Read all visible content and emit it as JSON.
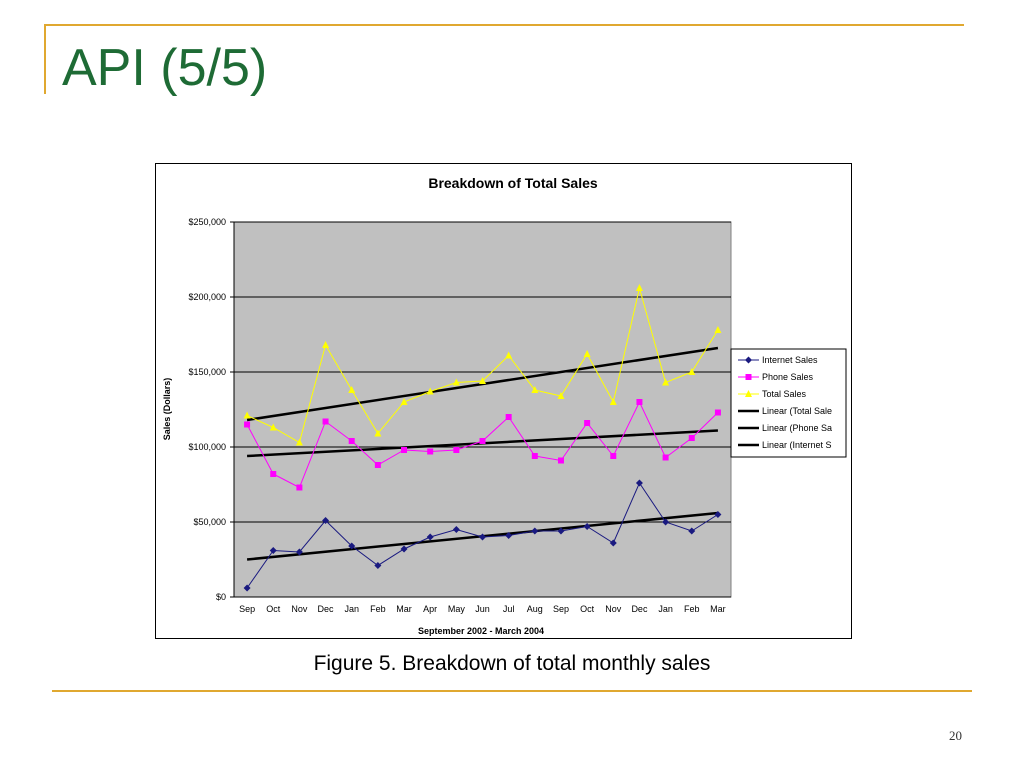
{
  "slide": {
    "title": "API (5/5)",
    "caption": "Figure 5. Breakdown of total monthly sales",
    "page_number": "20",
    "title_color": "#1e6b35",
    "accent_color": "#e0a830"
  },
  "chart_data": {
    "type": "line",
    "title": "Breakdown of Total Sales",
    "xlabel": "September 2002 - March 2004",
    "ylabel": "Sales (Dollars)",
    "ylim": [
      0,
      250000
    ],
    "yticks": [
      0,
      50000,
      100000,
      150000,
      200000,
      250000
    ],
    "ytick_labels": [
      "$0",
      "$50,000",
      "$100,000",
      "$150,000",
      "$200,000",
      "$250,000"
    ],
    "grid": true,
    "legend_position": "right",
    "plot_background": "#c0c0c0",
    "categories": [
      "Sep",
      "Oct",
      "Nov",
      "Dec",
      "Jan",
      "Feb",
      "Mar",
      "Apr",
      "May",
      "Jun",
      "Jul",
      "Aug",
      "Sep",
      "Oct",
      "Nov",
      "Dec",
      "Jan",
      "Feb",
      "Mar"
    ],
    "series": [
      {
        "name": "Internet Sales",
        "color": "#1a1a80",
        "marker": "diamond",
        "values": [
          6000,
          31000,
          30000,
          51000,
          34000,
          21000,
          32000,
          40000,
          45000,
          40000,
          41000,
          44000,
          44000,
          47000,
          36000,
          76000,
          50000,
          44000,
          55000
        ]
      },
      {
        "name": "Phone Sales",
        "color": "#ff00ff",
        "marker": "square",
        "values": [
          115000,
          82000,
          73000,
          117000,
          104000,
          88000,
          98000,
          97000,
          98000,
          104000,
          120000,
          94000,
          91000,
          116000,
          94000,
          130000,
          93000,
          106000,
          123000
        ]
      },
      {
        "name": "Total Sales",
        "color": "#ffff00",
        "marker": "triangle",
        "values": [
          121000,
          113000,
          103000,
          168000,
          138000,
          109000,
          130000,
          137000,
          143000,
          144000,
          161000,
          138000,
          134000,
          162000,
          130000,
          206000,
          143000,
          150000,
          178000
        ]
      }
    ],
    "trendlines": [
      {
        "name": "Linear (Total Sales)",
        "legend_label": "Linear (Total Sale",
        "color": "#000000",
        "start": 118000,
        "end": 166000
      },
      {
        "name": "Linear (Phone Sales)",
        "legend_label": "Linear (Phone Sa",
        "color": "#000000",
        "start": 94000,
        "end": 111000
      },
      {
        "name": "Linear (Internet Sales)",
        "legend_label": "Linear (Internet S",
        "color": "#000000",
        "start": 25000,
        "end": 56000
      }
    ]
  }
}
